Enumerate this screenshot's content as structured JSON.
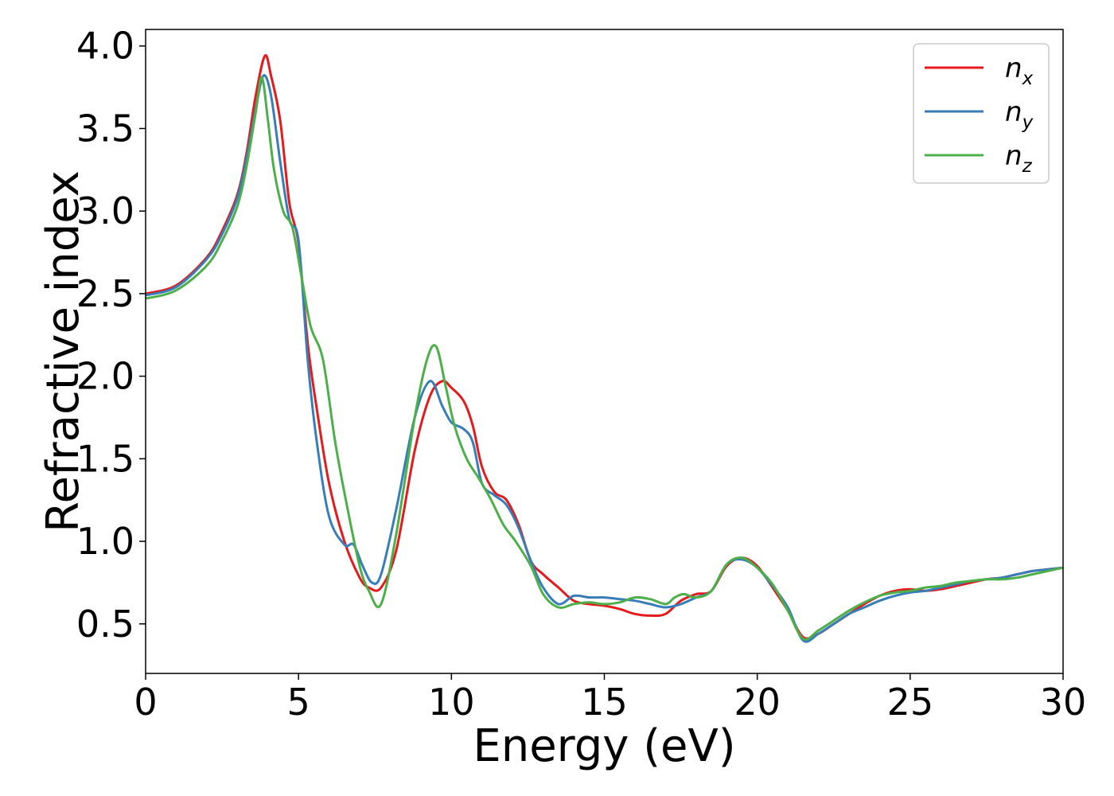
{
  "chart_data": {
    "type": "line",
    "title": "",
    "xlabel": "Energy (eV)",
    "ylabel": "Refractive index",
    "xlim": [
      0,
      30
    ],
    "ylim": [
      0.2,
      4.1
    ],
    "xticks": [
      0,
      5,
      10,
      15,
      20,
      25,
      30
    ],
    "yticks": [
      0.5,
      1.0,
      1.5,
      2.0,
      2.5,
      3.0,
      3.5,
      4.0
    ],
    "xtick_labels": [
      "0",
      "5",
      "10",
      "15",
      "20",
      "25",
      "30"
    ],
    "ytick_labels": [
      "0.5",
      "1.0",
      "1.5",
      "2.0",
      "2.5",
      "3.0",
      "3.5",
      "4.0"
    ],
    "grid": false,
    "legend_position": "top-right",
    "series": [
      {
        "name": "n_x",
        "legend_base": "n",
        "legend_sub": "x",
        "color": "#e41a1c",
        "x": [
          0,
          1,
          2,
          2.5,
          3,
          3.3,
          3.6,
          3.9,
          4.1,
          4.4,
          4.7,
          5.0,
          5.3,
          5.6,
          6.0,
          6.5,
          7.0,
          7.3,
          7.7,
          8.2,
          8.8,
          9.3,
          9.7,
          10.0,
          10.4,
          10.7,
          11.0,
          11.4,
          11.8,
          12.2,
          12.6,
          13.0,
          13.5,
          14.0,
          14.5,
          15.0,
          15.5,
          16.0,
          16.5,
          17.0,
          17.5,
          18.0,
          18.5,
          19.0,
          19.5,
          20.0,
          20.5,
          21.0,
          21.5,
          22.0,
          22.5,
          23.0,
          23.5,
          24.0,
          24.5,
          25.0,
          25.5,
          26.0,
          26.5,
          27.0,
          27.5,
          28.0,
          28.5,
          29.0,
          29.5,
          30.0
        ],
        "y": [
          2.5,
          2.55,
          2.72,
          2.88,
          3.1,
          3.35,
          3.7,
          3.94,
          3.82,
          3.55,
          3.05,
          2.8,
          2.2,
          1.8,
          1.35,
          1.0,
          0.78,
          0.72,
          0.72,
          0.95,
          1.55,
          1.88,
          1.97,
          1.93,
          1.85,
          1.7,
          1.45,
          1.3,
          1.25,
          1.1,
          0.88,
          0.8,
          0.72,
          0.64,
          0.62,
          0.61,
          0.59,
          0.56,
          0.55,
          0.56,
          0.64,
          0.68,
          0.7,
          0.85,
          0.9,
          0.85,
          0.72,
          0.58,
          0.42,
          0.44,
          0.5,
          0.56,
          0.62,
          0.67,
          0.7,
          0.71,
          0.7,
          0.71,
          0.73,
          0.75,
          0.77,
          0.78,
          0.8,
          0.82,
          0.83,
          0.84
        ]
      },
      {
        "name": "n_y",
        "legend_base": "n",
        "legend_sub": "y",
        "color": "#377eb8",
        "x": [
          0,
          1,
          2,
          2.5,
          3,
          3.3,
          3.6,
          3.85,
          4.1,
          4.4,
          4.7,
          5.0,
          5.3,
          5.6,
          6.0,
          6.5,
          6.8,
          7.1,
          7.4,
          7.7,
          8.2,
          8.8,
          9.3,
          9.7,
          10.0,
          10.4,
          10.7,
          11.0,
          11.4,
          11.8,
          12.2,
          12.6,
          13.0,
          13.5,
          14.0,
          14.5,
          15.0,
          15.5,
          16.0,
          16.5,
          17.0,
          17.5,
          18.0,
          18.5,
          19.0,
          19.5,
          20.0,
          20.5,
          21.0,
          21.5,
          22.0,
          22.5,
          23.0,
          23.5,
          24.0,
          24.5,
          25.0,
          25.5,
          26.0,
          26.5,
          27.0,
          27.5,
          28.0,
          28.5,
          29.0,
          29.5,
          30.0
        ],
        "y": [
          2.49,
          2.54,
          2.71,
          2.86,
          3.08,
          3.32,
          3.62,
          3.82,
          3.7,
          3.3,
          2.95,
          2.82,
          2.1,
          1.6,
          1.15,
          0.98,
          0.98,
          0.85,
          0.75,
          0.8,
          1.2,
          1.75,
          1.97,
          1.82,
          1.72,
          1.68,
          1.6,
          1.35,
          1.28,
          1.22,
          1.08,
          0.88,
          0.72,
          0.62,
          0.67,
          0.66,
          0.66,
          0.65,
          0.64,
          0.62,
          0.6,
          0.62,
          0.66,
          0.7,
          0.86,
          0.89,
          0.84,
          0.73,
          0.6,
          0.4,
          0.44,
          0.5,
          0.56,
          0.6,
          0.64,
          0.67,
          0.69,
          0.7,
          0.72,
          0.74,
          0.76,
          0.77,
          0.78,
          0.8,
          0.82,
          0.83,
          0.84
        ]
      },
      {
        "name": "n_z",
        "legend_base": "n",
        "legend_sub": "z",
        "color": "#4daf4a",
        "x": [
          0,
          1,
          2,
          2.5,
          3,
          3.3,
          3.6,
          3.8,
          4.0,
          4.2,
          4.5,
          4.8,
          5.1,
          5.4,
          5.8,
          6.2,
          6.6,
          7.0,
          7.3,
          7.7,
          8.2,
          8.8,
          9.2,
          9.5,
          9.8,
          10.1,
          10.5,
          10.9,
          11.3,
          11.7,
          12.1,
          12.6,
          13.0,
          13.5,
          14.0,
          14.5,
          15.0,
          15.5,
          16.0,
          16.5,
          17.0,
          17.3,
          17.6,
          18.0,
          18.5,
          19.0,
          19.5,
          20.0,
          20.5,
          21.0,
          21.5,
          22.0,
          22.5,
          23.0,
          23.5,
          24.0,
          24.5,
          25.0,
          25.5,
          26.0,
          26.5,
          27.0,
          27.5,
          28.0,
          28.5,
          29.0,
          29.5,
          30.0
        ],
        "y": [
          2.47,
          2.52,
          2.67,
          2.82,
          3.03,
          3.27,
          3.6,
          3.81,
          3.55,
          3.25,
          3.0,
          2.9,
          2.6,
          2.3,
          2.1,
          1.6,
          1.2,
          0.85,
          0.7,
          0.62,
          1.05,
          1.75,
          2.1,
          2.18,
          1.95,
          1.7,
          1.5,
          1.38,
          1.25,
          1.1,
          1.0,
          0.85,
          0.68,
          0.6,
          0.62,
          0.63,
          0.62,
          0.63,
          0.66,
          0.65,
          0.62,
          0.66,
          0.68,
          0.66,
          0.7,
          0.86,
          0.9,
          0.84,
          0.74,
          0.58,
          0.41,
          0.46,
          0.52,
          0.58,
          0.63,
          0.67,
          0.69,
          0.7,
          0.72,
          0.73,
          0.75,
          0.76,
          0.77,
          0.77,
          0.78,
          0.8,
          0.82,
          0.84
        ]
      }
    ]
  }
}
